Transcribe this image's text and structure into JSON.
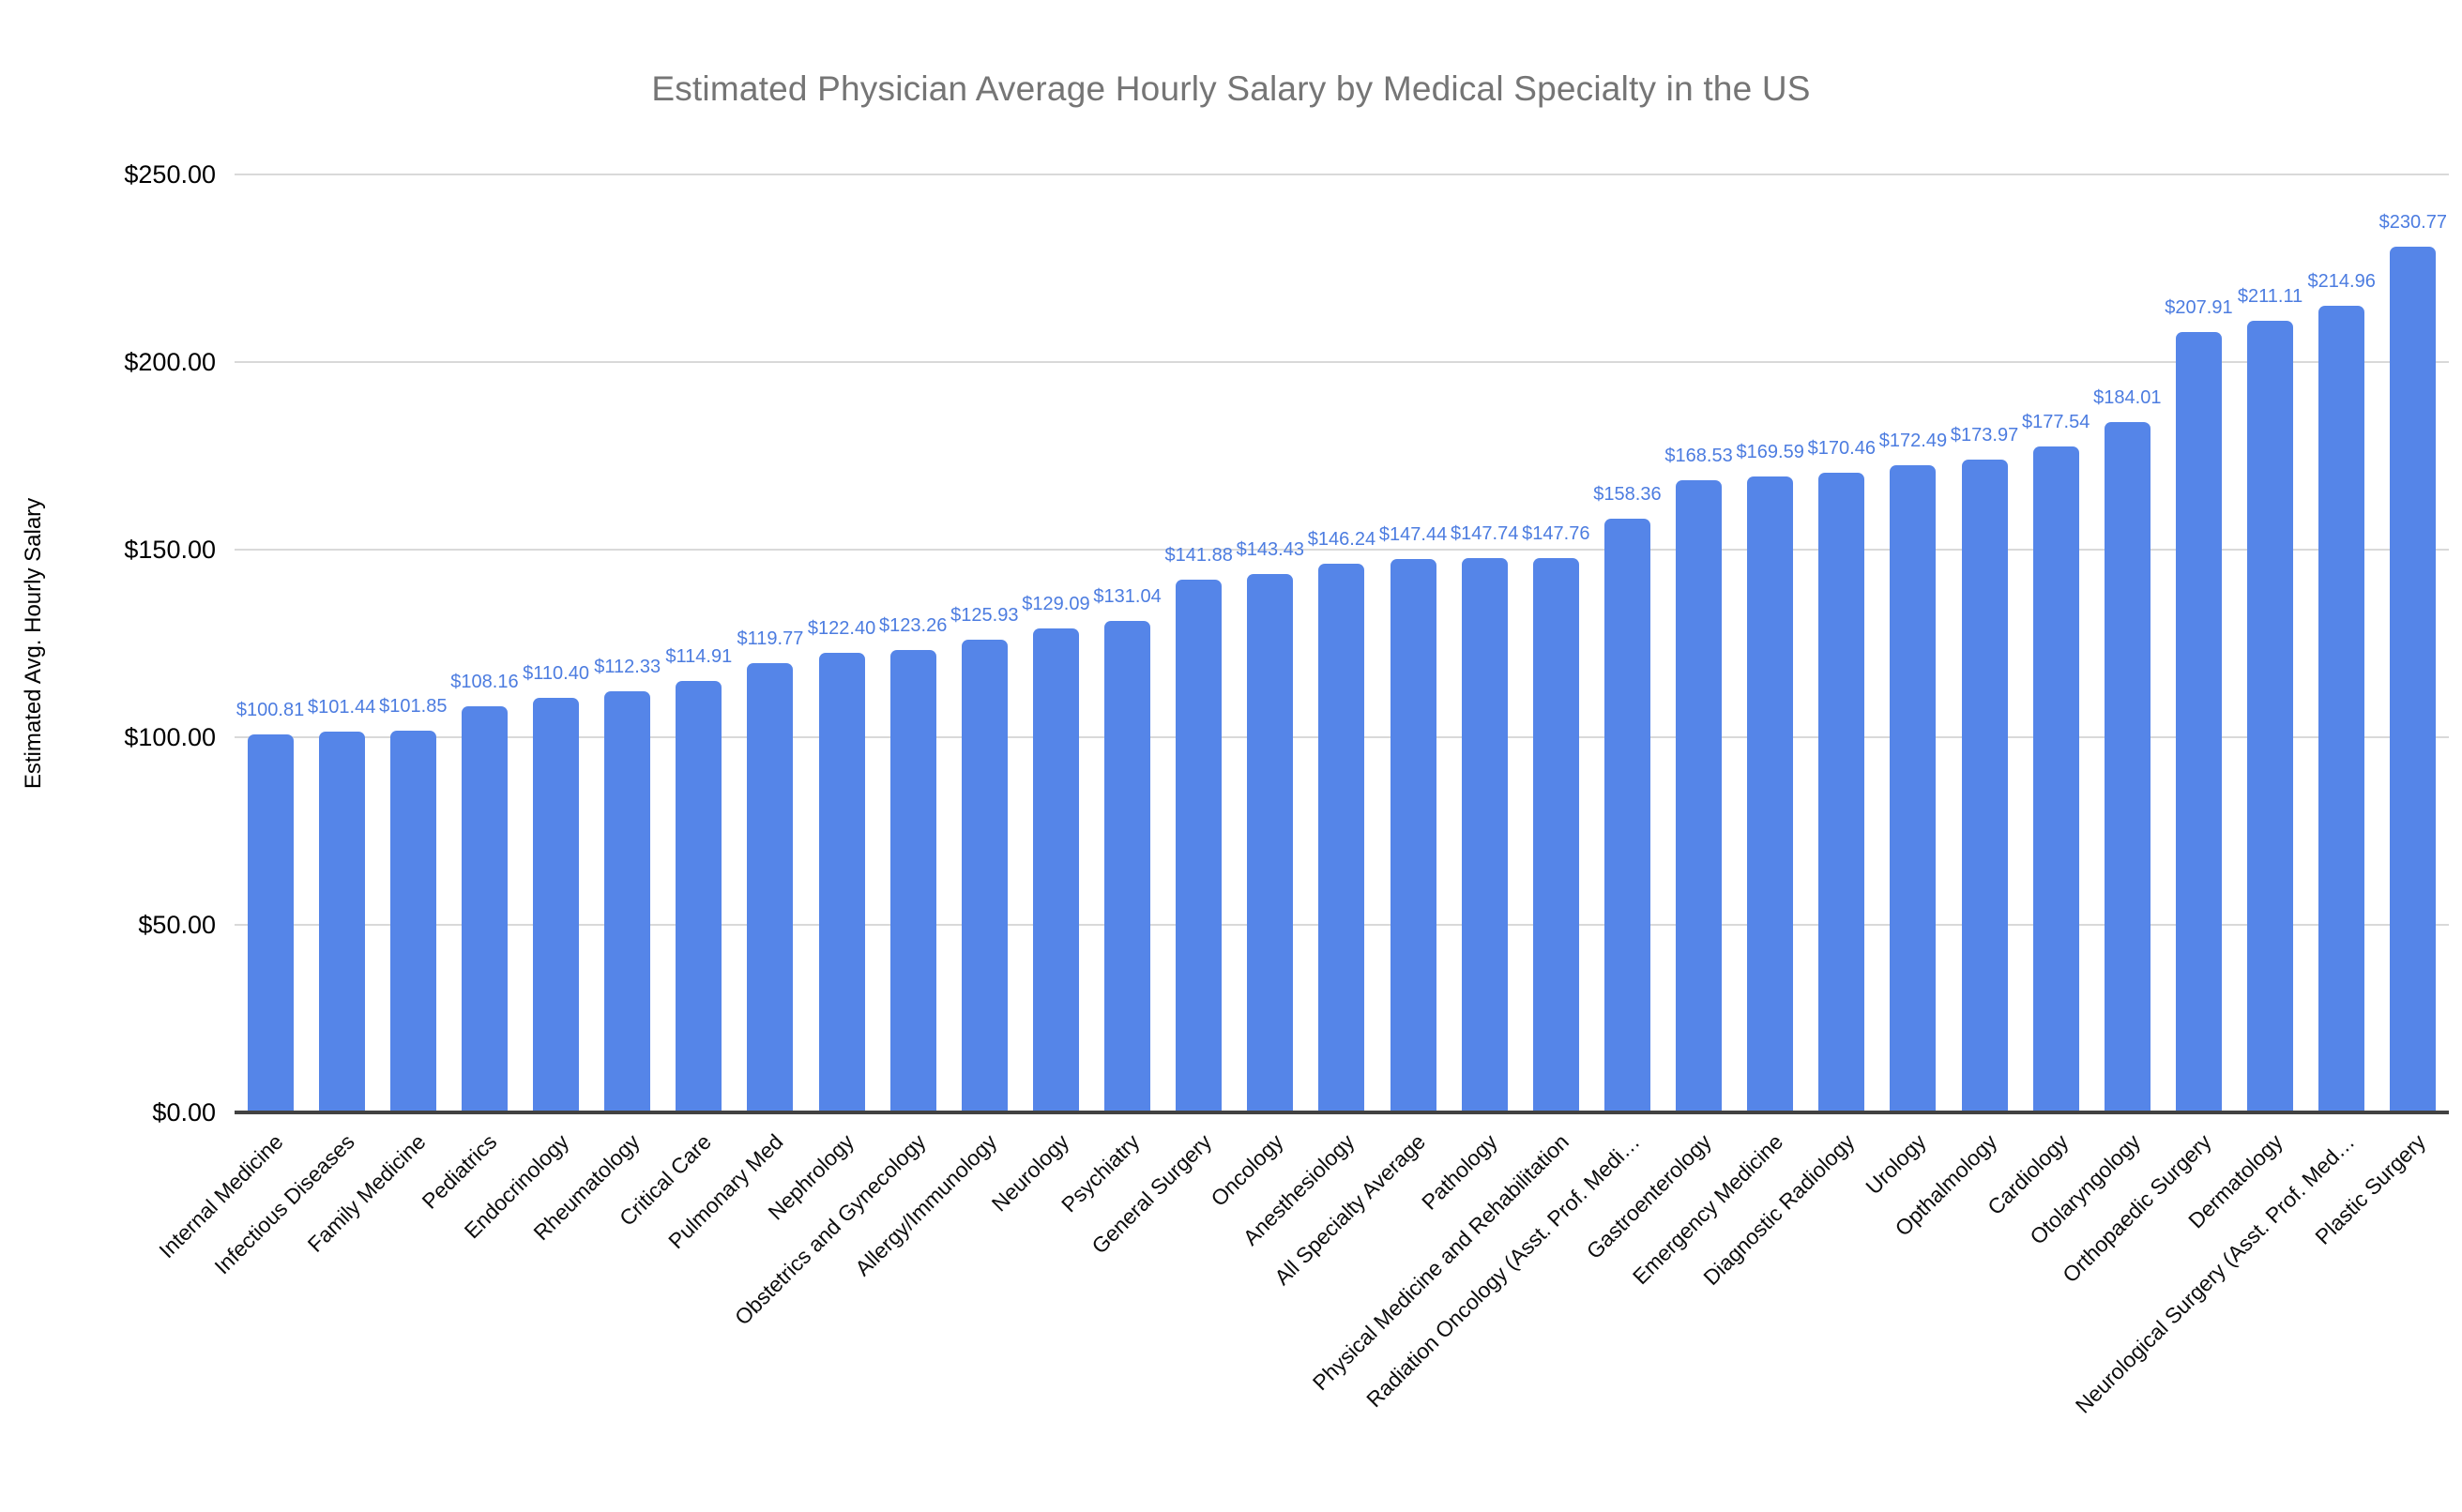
{
  "chart_data": {
    "type": "bar",
    "title": "Estimated Physician Average Hourly Salary by Medical Specialty in the US",
    "xlabel": "",
    "ylabel": "Estimated Avg. Hourly Salary",
    "ylim": [
      0,
      250
    ],
    "grid": true,
    "legend": false,
    "value_prefix": "$",
    "bar_color": "#5585E8",
    "value_label_color": "#4C7CE0",
    "title_color": "#757575",
    "gridline_color": "#d9d9d9",
    "axis_line_color": "#424242",
    "y_tick_values": [
      0,
      50,
      100,
      150,
      200,
      250
    ],
    "y_tick_labels": [
      "$0.00",
      "$50.00",
      "$100.00",
      "$150.00",
      "$200.00",
      "$250.00"
    ],
    "categories": [
      "Internal Medicine",
      "Infectious Diseases",
      "Family Medicine",
      "Pediatrics",
      "Endocrinology",
      "Rheumatology",
      "Critical Care",
      "Pulmonary Med",
      "Nephrology",
      "Obstetrics and Gynecology",
      "Allergy/Immunology",
      "Neurology",
      "Psychiatry",
      "General Surgery",
      "Oncology",
      "Anesthesiology",
      "All Specialty Average",
      "Pathology",
      "Physical Medicine and Rehabilitation",
      "Radiation Oncology (Asst. Prof. Medi…",
      "Gastroenterology",
      "Emergency Medicine",
      "Diagnostic Radiology",
      "Urology",
      "Opthalmology",
      "Cardiology",
      "Otolaryngology",
      "Orthopaedic Surgery",
      "Dermatology",
      "Neurological Surgery (Asst. Prof. Med…",
      "Plastic Surgery"
    ],
    "values": [
      100.81,
      101.44,
      101.85,
      108.16,
      110.4,
      112.33,
      114.91,
      119.77,
      122.4,
      123.26,
      125.93,
      129.09,
      131.04,
      141.88,
      143.43,
      146.24,
      147.44,
      147.74,
      147.76,
      158.36,
      168.53,
      169.59,
      170.46,
      172.49,
      173.97,
      177.54,
      184.01,
      207.91,
      211.11,
      214.96,
      230.77
    ],
    "value_labels": [
      "$100.81",
      "$101.44",
      "$101.85",
      "$108.16",
      "$110.40",
      "$112.33",
      "$114.91",
      "$119.77",
      "$122.40",
      "$123.26",
      "$125.93",
      "$129.09",
      "$131.04",
      "$141.88",
      "$143.43",
      "$146.24",
      "$147.44",
      "$147.74",
      "$147.76",
      "$158.36",
      "$168.53",
      "$169.59",
      "$170.46",
      "$172.49",
      "$173.97",
      "$177.54",
      "$184.01",
      "$207.91",
      "$211.11",
      "$214.96",
      "$230.77"
    ]
  }
}
